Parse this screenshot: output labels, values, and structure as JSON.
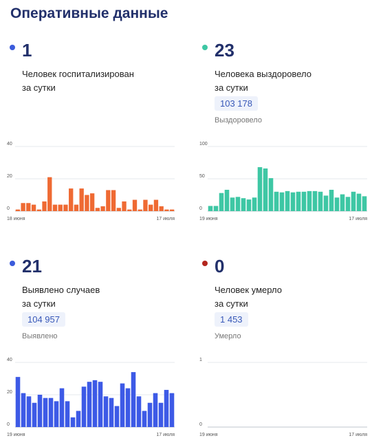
{
  "page": {
    "title": "Оперативные данные"
  },
  "cards": [
    {
      "count": "1",
      "caption_line1": "Человек госпитализирован",
      "caption_line2": "за сутки",
      "dot_color": "#3b5bdb",
      "bar_color": "#ef6a33"
    },
    {
      "count": "23",
      "caption_line1": "Человека выздоровело",
      "caption_line2": "за сутки",
      "total": "103 178",
      "total_label": "Выздоровело",
      "dot_color": "#3ec7a4",
      "bar_color": "#3ec7a4"
    },
    {
      "count": "21",
      "caption_line1": "Выявлено случаев",
      "caption_line2": "за сутки",
      "total": "104 957",
      "total_label": "Выявлено",
      "dot_color": "#3b5bdb",
      "bar_color": "#3d5ae6"
    },
    {
      "count": "0",
      "caption_line1": "Человек умерло",
      "caption_line2": "за сутки",
      "total": "1 453",
      "total_label": "Умерло",
      "dot_color": "#b3261e",
      "bar_color": "#b3261e"
    }
  ],
  "chart_data": [
    {
      "type": "bar",
      "x_start_label": "18 июня",
      "x_end_label": "17 июля",
      "yticks": [
        "0",
        "20",
        "40"
      ],
      "ylim": [
        0,
        40
      ],
      "grid": true,
      "values": [
        1,
        5,
        5,
        4,
        1,
        6,
        21,
        4,
        4,
        4,
        14,
        4,
        14,
        10,
        11,
        2,
        3,
        13,
        13,
        2,
        6,
        1,
        7,
        1,
        7,
        4,
        7,
        3,
        1,
        1
      ]
    },
    {
      "type": "bar",
      "x_start_label": "19 июня",
      "x_end_label": "17 июля",
      "yticks": [
        "0",
        "50",
        "100"
      ],
      "ylim": [
        0,
        100
      ],
      "grid": true,
      "values": [
        8,
        8,
        28,
        33,
        21,
        22,
        20,
        18,
        21,
        68,
        66,
        51,
        30,
        29,
        31,
        29,
        30,
        30,
        31,
        31,
        30,
        24,
        33,
        21,
        26,
        22,
        30,
        27,
        23
      ]
    },
    {
      "type": "bar",
      "x_start_label": "19 июня",
      "x_end_label": "17 июля",
      "yticks": [
        "0",
        "20",
        "40"
      ],
      "ylim": [
        0,
        40
      ],
      "grid": true,
      "values": [
        31,
        21,
        19,
        15,
        20,
        18,
        18,
        16,
        24,
        16,
        6,
        10,
        25,
        28,
        29,
        28,
        19,
        18,
        13,
        27,
        24,
        34,
        19,
        10,
        15,
        21,
        15,
        23,
        21
      ]
    },
    {
      "type": "bar",
      "x_start_label": "19 июня",
      "x_end_label": "17 июля",
      "yticks": [
        "0",
        "1"
      ],
      "ylim": [
        0,
        1
      ],
      "grid": true,
      "values": [
        0,
        0,
        0,
        0,
        0,
        0,
        0,
        0,
        0,
        0,
        0,
        0,
        0,
        0,
        0,
        0,
        0,
        0,
        0,
        0,
        0,
        0,
        0,
        0,
        0,
        0,
        0,
        0,
        0
      ]
    }
  ]
}
